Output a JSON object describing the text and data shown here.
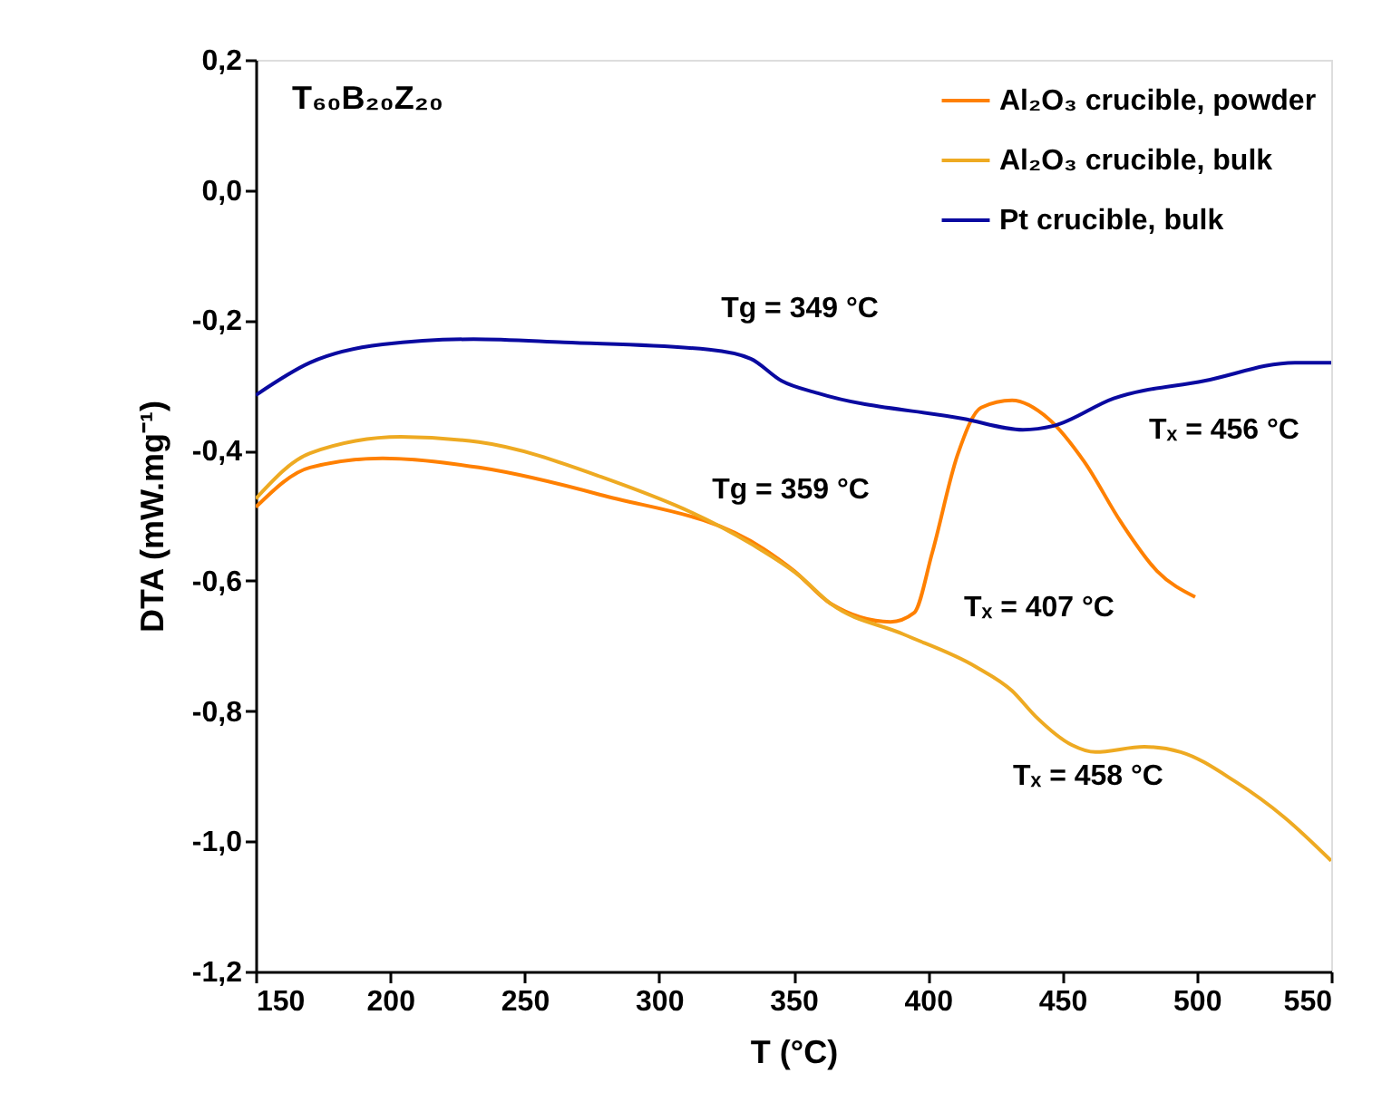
{
  "chart_data": {
    "type": "line",
    "xlabel": "T (°C)",
    "ylabel": "DTA (mW.mg⁻¹)",
    "xlim": [
      150,
      550
    ],
    "xticks": [
      150,
      200,
      250,
      300,
      350,
      400,
      450,
      500,
      550
    ],
    "ylim": [
      -1.2,
      0.2
    ],
    "yticks": [
      {
        "value": -1.2,
        "label": "-1,2"
      },
      {
        "value": -1.0,
        "label": "-1,0"
      },
      {
        "value": -0.8,
        "label": "-0,8"
      },
      {
        "value": -0.6,
        "label": "-0,6"
      },
      {
        "value": -0.4,
        "label": "-0,4"
      },
      {
        "value": -0.2,
        "label": "-0,2"
      },
      {
        "value": 0.0,
        "label": "0,0"
      },
      {
        "value": 0.2,
        "label": "0,2"
      }
    ],
    "grid": false,
    "legend": "top right",
    "marker": "none",
    "line_style": "solid",
    "series": [
      {
        "name": "Al₂O₃ crucible, powder",
        "color": "#ff8000",
        "x": [
          150,
          170.2,
          197.2,
          233.0,
          278.2,
          338.9,
          350.3,
          363.8,
          386.1,
          394.9,
          401.6,
          411.0,
          419.8,
          431.3,
          444.8,
          458.3,
          471.8,
          485.2,
          499.4
        ],
        "values": [
          -0.487,
          -0.426,
          -0.412,
          -0.426,
          -0.468,
          -0.551,
          -0.585,
          -0.635,
          -0.663,
          -0.649,
          -0.557,
          -0.407,
          -0.334,
          -0.323,
          -0.351,
          -0.418,
          -0.51,
          -0.585,
          -0.625
        ]
      },
      {
        "name": "Al₂O₃ crucible, bulk",
        "color": "#eeaa22",
        "x": [
          150,
          170.2,
          204.0,
          233.0,
          278.2,
          334.1,
          352.4,
          363.8,
          390.8,
          417.8,
          431.3,
          440.0,
          453.5,
          462.3,
          480.5,
          494.0,
          514.2,
          532.5,
          550
        ],
        "values": [
          -0.474,
          -0.404,
          -0.379,
          -0.387,
          -0.44,
          -0.543,
          -0.593,
          -0.635,
          -0.682,
          -0.732,
          -0.769,
          -0.808,
          -0.852,
          -0.863,
          -0.855,
          -0.863,
          -0.908,
          -0.963,
          -1.03
        ]
      },
      {
        "name": "Pt crucible, bulk",
        "color": "#0a0aa0",
        "x": [
          150,
          170.2,
          197.2,
          231.0,
          264.7,
          318.6,
          334.1,
          345.6,
          359.1,
          413.1,
          435.3,
          446.8,
          469.1,
          502.8,
          536.5,
          550
        ],
        "values": [
          -0.315,
          -0.265,
          -0.237,
          -0.229,
          -0.234,
          -0.245,
          -0.259,
          -0.293,
          -0.312,
          -0.351,
          -0.368,
          -0.362,
          -0.32,
          -0.293,
          -0.265,
          -0.265
        ]
      }
    ],
    "annotations": [
      "T₆₀B₂₀Z₂₀",
      "Tg = 349 °C",
      "Tg = 359 °C",
      "Tₓ = 407 °C",
      "Tₓ = 456 °C",
      "Tₓ = 458 °C"
    ]
  }
}
